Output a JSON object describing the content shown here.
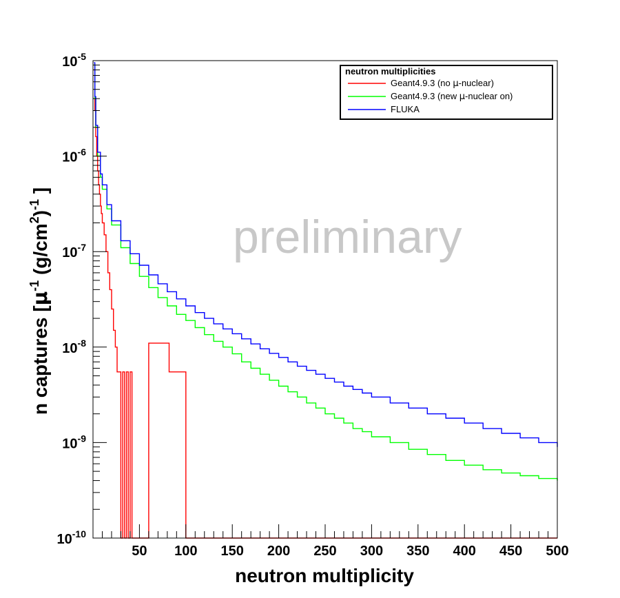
{
  "chart_data": {
    "type": "line",
    "title": "",
    "xlabel": "neutron multiplicity",
    "ylabel_parts": [
      "n captures [",
      "μ",
      "-1",
      " (g/cm",
      "2",
      ")",
      "-1",
      " ]"
    ],
    "xlim": [
      0,
      500
    ],
    "ylim": [
      1e-10,
      1e-05
    ],
    "yscale": "log",
    "x_ticks": [
      50,
      100,
      150,
      200,
      250,
      300,
      350,
      400,
      450,
      500
    ],
    "y_tick_exponents": [
      -5,
      -6,
      -7,
      -8,
      -9,
      -10
    ],
    "y_tick_base": "10",
    "grid": false,
    "legend_position": "top-right",
    "legend": {
      "title": "neutron multiplicities",
      "entries": [
        {
          "name_parts": [
            "Geant4.9.3 (no ",
            "μ",
            "-nuclear)"
          ],
          "color": "#ff0000"
        },
        {
          "name_parts": [
            "Geant4.9.3 (new ",
            "μ",
            "-nuclear on)"
          ],
          "color": "#00ff00"
        },
        {
          "name_parts": [
            "FLUKA"
          ],
          "color": "#0000ff"
        }
      ]
    },
    "annotations": [
      {
        "text": "preliminary",
        "color": "#c8c8c8"
      }
    ],
    "series": [
      {
        "name": "Geant4.9.3 (no μ-nuclear)",
        "color": "#ff0000",
        "x": [
          1,
          2,
          3,
          4,
          5,
          6,
          7,
          8,
          9,
          10,
          12,
          14,
          16,
          18,
          20,
          22,
          24,
          26,
          28,
          30,
          32,
          34,
          36,
          38,
          40,
          42,
          60,
          82,
          100,
          150,
          200,
          300,
          400,
          500
        ],
        "y": [
          8e-06,
          3e-06,
          1.6e-06,
          1e-06,
          7e-07,
          5e-07,
          4e-07,
          3e-07,
          2.5e-07,
          2e-07,
          1.5e-07,
          1e-07,
          6e-08,
          4e-08,
          2.5e-08,
          1.5e-08,
          1e-08,
          5.5e-09,
          5.5e-09,
          1e-10,
          5.5e-09,
          1e-10,
          5.5e-09,
          1e-10,
          5.5e-09,
          1e-10,
          1.1e-08,
          5.5e-09,
          1e-10,
          1e-10,
          1e-10,
          1e-10,
          1e-10,
          1e-10
        ]
      },
      {
        "name": "Geant4.9.3 (new μ-nuclear on)",
        "color": "#00ff00",
        "x": [
          1,
          2,
          3,
          5,
          8,
          10,
          15,
          20,
          30,
          40,
          50,
          60,
          70,
          80,
          90,
          100,
          110,
          120,
          130,
          140,
          150,
          160,
          170,
          180,
          190,
          200,
          210,
          220,
          230,
          240,
          250,
          260,
          270,
          280,
          290,
          300,
          320,
          340,
          360,
          380,
          400,
          420,
          440,
          460,
          480,
          500
        ],
        "y": [
          9e-06,
          4e-06,
          2e-06,
          1e-06,
          6e-07,
          4.5e-07,
          2.8e-07,
          1.9e-07,
          1.1e-07,
          7.5e-08,
          5.5e-08,
          4.2e-08,
          3.3e-08,
          2.7e-08,
          2.2e-08,
          1.9e-08,
          1.6e-08,
          1.35e-08,
          1.15e-08,
          1e-08,
          8.5e-09,
          7e-09,
          6e-09,
          5.2e-09,
          4.5e-09,
          3.9e-09,
          3.4e-09,
          3e-09,
          2.6e-09,
          2.3e-09,
          2e-09,
          1.8e-09,
          1.6e-09,
          1.4e-09,
          1.3e-09,
          1.15e-09,
          1e-09,
          8.5e-10,
          7.5e-10,
          6.5e-10,
          5.8e-10,
          5.2e-10,
          4.8e-10,
          4.5e-10,
          4.2e-10,
          4e-10
        ]
      },
      {
        "name": "FLUKA",
        "color": "#0000ff",
        "x": [
          1,
          2,
          3,
          5,
          8,
          10,
          15,
          20,
          30,
          40,
          50,
          60,
          70,
          80,
          90,
          100,
          110,
          120,
          130,
          140,
          150,
          160,
          170,
          180,
          190,
          200,
          210,
          220,
          230,
          240,
          250,
          260,
          270,
          280,
          290,
          300,
          320,
          340,
          360,
          380,
          400,
          420,
          440,
          460,
          480,
          500
        ],
        "y": [
          9.5e-06,
          4.2e-06,
          2.1e-06,
          1.1e-06,
          6.5e-07,
          5e-07,
          3.1e-07,
          2.1e-07,
          1.3e-07,
          9.5e-08,
          7.2e-08,
          5.7e-08,
          4.6e-08,
          3.8e-08,
          3.2e-08,
          2.7e-08,
          2.3e-08,
          2e-08,
          1.75e-08,
          1.55e-08,
          1.38e-08,
          1.22e-08,
          1.08e-08,
          9.6e-09,
          8.6e-09,
          7.8e-09,
          7e-09,
          6.3e-09,
          5.7e-09,
          5.2e-09,
          4.7e-09,
          4.3e-09,
          3.9e-09,
          3.6e-09,
          3.3e-09,
          3e-09,
          2.6e-09,
          2.3e-09,
          2e-09,
          1.8e-09,
          1.6e-09,
          1.4e-09,
          1.25e-09,
          1.12e-09,
          1e-09,
          9e-10
        ]
      }
    ]
  }
}
